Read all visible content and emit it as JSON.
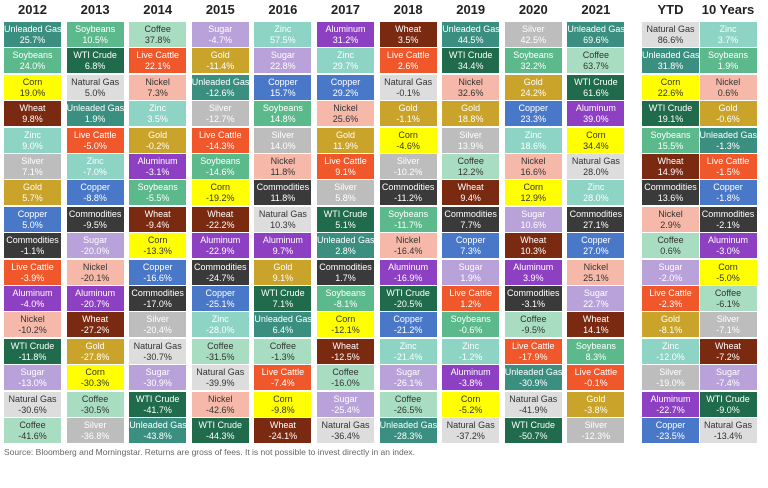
{
  "table": {
    "palette": {
      "Unleaded Gas": {
        "fill": "#3b8f80",
        "text": "#ffffff"
      },
      "Soybeans": {
        "fill": "#5cb98c",
        "text": "#ffffff"
      },
      "Corn": {
        "fill": "#ffff00",
        "text": "#333333"
      },
      "Wheat": {
        "fill": "#7b2a12",
        "text": "#ffffff"
      },
      "Zinc": {
        "fill": "#8dd4c4",
        "text": "#ffffff"
      },
      "Silver": {
        "fill": "#bdbdbd",
        "text": "#ffffff"
      },
      "Gold": {
        "fill": "#c9a32a",
        "text": "#ffffff"
      },
      "Copper": {
        "fill": "#4a78c9",
        "text": "#ffffff"
      },
      "Commodities": {
        "fill": "#3a3a3a",
        "text": "#ffffff"
      },
      "Live Cattle": {
        "fill": "#f0572b",
        "text": "#ffffff"
      },
      "Aluminum": {
        "fill": "#8d40c1",
        "text": "#ffffff"
      },
      "Nickel": {
        "fill": "#f6b9a9",
        "text": "#333333"
      },
      "WTI Crude": {
        "fill": "#1f6b4b",
        "text": "#ffffff"
      },
      "Sugar": {
        "fill": "#b9a2d9",
        "text": "#ffffff"
      },
      "Natural Gas": {
        "fill": "#dddddd",
        "text": "#333333"
      },
      "Coffee": {
        "fill": "#a9ddc1",
        "text": "#333333"
      }
    },
    "columns": [
      {
        "header": "2012",
        "cells": [
          [
            "Unleaded Gas",
            "25.7%"
          ],
          [
            "Soybeans",
            "24.0%"
          ],
          [
            "Corn",
            "19.0%"
          ],
          [
            "Wheat",
            "9.8%"
          ],
          [
            "Zinc",
            "9.0%"
          ],
          [
            "Silver",
            "7.1%"
          ],
          [
            "Gold",
            "5.7%"
          ],
          [
            "Copper",
            "5.0%"
          ],
          [
            "Commodities",
            "-1.1%"
          ],
          [
            "Live Cattle",
            "-3.9%"
          ],
          [
            "Aluminum",
            "-4.0%"
          ],
          [
            "Nickel",
            "-10.2%"
          ],
          [
            "WTI Crude",
            "-11.8%"
          ],
          [
            "Sugar",
            "-13.0%"
          ],
          [
            "Natural Gas",
            "-30.6%"
          ],
          [
            "Coffee",
            "-41.6%"
          ]
        ]
      },
      {
        "header": "2013",
        "cells": [
          [
            "Soybeans",
            "10.5%"
          ],
          [
            "WTI Crude",
            "6.8%"
          ],
          [
            "Natural Gas",
            "5.0%"
          ],
          [
            "Unleaded Gas",
            "1.9%"
          ],
          [
            "Live Cattle",
            "-5.0%"
          ],
          [
            "Zinc",
            "-7.0%"
          ],
          [
            "Copper",
            "-8.8%"
          ],
          [
            "Commodities",
            "-9.5%"
          ],
          [
            "Sugar",
            "-20.0%"
          ],
          [
            "Nickel",
            "-20.1%"
          ],
          [
            "Aluminum",
            "-20.7%"
          ],
          [
            "Wheat",
            "-27.2%"
          ],
          [
            "Gold",
            "-27.8%"
          ],
          [
            "Corn",
            "-30.3%"
          ],
          [
            "Coffee",
            "-30.5%"
          ],
          [
            "Silver",
            "-36.8%"
          ]
        ]
      },
      {
        "header": "2014",
        "cells": [
          [
            "Coffee",
            "37.8%"
          ],
          [
            "Live Cattle",
            "22.1%"
          ],
          [
            "Nickel",
            "7.3%"
          ],
          [
            "Zinc",
            "3.5%"
          ],
          [
            "Gold",
            "-0.2%"
          ],
          [
            "Aluminum",
            "-3.1%"
          ],
          [
            "Soybeans",
            "-5.5%"
          ],
          [
            "Wheat",
            "-9.4%"
          ],
          [
            "Corn",
            "-13.3%"
          ],
          [
            "Copper",
            "-16.6%"
          ],
          [
            "Commodities",
            "-17.0%"
          ],
          [
            "Silver",
            "-20.4%"
          ],
          [
            "Natural Gas",
            "-30.7%"
          ],
          [
            "Sugar",
            "-30.9%"
          ],
          [
            "WTI Crude",
            "-41.7%"
          ],
          [
            "Unleaded Gas",
            "-43.8%"
          ]
        ]
      },
      {
        "header": "2015",
        "cells": [
          [
            "Sugar",
            "-4.7%"
          ],
          [
            "Gold",
            "-11.4%"
          ],
          [
            "Unleaded Gas",
            "-12.6%"
          ],
          [
            "Silver",
            "-12.7%"
          ],
          [
            "Live Cattle",
            "-14.3%"
          ],
          [
            "Soybeans",
            "-14.6%"
          ],
          [
            "Corn",
            "-19.2%"
          ],
          [
            "Wheat",
            "-22.2%"
          ],
          [
            "Aluminum",
            "-22.9%"
          ],
          [
            "Commodities",
            "-24.7%"
          ],
          [
            "Copper",
            "-25.1%"
          ],
          [
            "Zinc",
            "-28.0%"
          ],
          [
            "Coffee",
            "-31.5%"
          ],
          [
            "Natural Gas",
            "-39.9%"
          ],
          [
            "Nickel",
            "-42.6%"
          ],
          [
            "WTI Crude",
            "-44.3%"
          ]
        ]
      },
      {
        "header": "2016",
        "cells": [
          [
            "Zinc",
            "57.5%"
          ],
          [
            "Sugar",
            "22.8%"
          ],
          [
            "Copper",
            "15.7%"
          ],
          [
            "Soybeans",
            "14.8%"
          ],
          [
            "Silver",
            "14.0%"
          ],
          [
            "Nickel",
            "11.8%"
          ],
          [
            "Commodities",
            "11.8%"
          ],
          [
            "Natural Gas",
            "10.3%"
          ],
          [
            "Aluminum",
            "9.7%"
          ],
          [
            "Gold",
            "9.1%"
          ],
          [
            "WTI Crude",
            "7.1%"
          ],
          [
            "Unleaded Gas",
            "6.4%"
          ],
          [
            "Coffee",
            "-1.3%"
          ],
          [
            "Live Cattle",
            "-7.4%"
          ],
          [
            "Corn",
            "-9.8%"
          ],
          [
            "Wheat",
            "-24.1%"
          ]
        ]
      },
      {
        "header": "2017",
        "cells": [
          [
            "Aluminum",
            "31.2%"
          ],
          [
            "Zinc",
            "29.7%"
          ],
          [
            "Copper",
            "29.2%"
          ],
          [
            "Nickel",
            "25.6%"
          ],
          [
            "Gold",
            "11.9%"
          ],
          [
            "Live Cattle",
            "9.1%"
          ],
          [
            "Silver",
            "5.8%"
          ],
          [
            "WTI Crude",
            "5.1%"
          ],
          [
            "Unleaded Gas",
            "2.8%"
          ],
          [
            "Commodities",
            "1.7%"
          ],
          [
            "Soybeans",
            "-8.1%"
          ],
          [
            "Corn",
            "-12.1%"
          ],
          [
            "Wheat",
            "-12.5%"
          ],
          [
            "Coffee",
            "-16.0%"
          ],
          [
            "Sugar",
            "-25.4%"
          ],
          [
            "Natural Gas",
            "-36.4%"
          ]
        ]
      },
      {
        "header": "2018",
        "cells": [
          [
            "Wheat",
            "3.5%"
          ],
          [
            "Live Cattle",
            "2.6%"
          ],
          [
            "Natural Gas",
            "-0.1%"
          ],
          [
            "Gold",
            "-1.1%"
          ],
          [
            "Corn",
            "-4.6%"
          ],
          [
            "Silver",
            "-10.2%"
          ],
          [
            "Commodities",
            "-11.2%"
          ],
          [
            "Soybeans",
            "-11.7%"
          ],
          [
            "Nickel",
            "-16.4%"
          ],
          [
            "Aluminum",
            "-16.9%"
          ],
          [
            "WTI Crude",
            "-20.5%"
          ],
          [
            "Copper",
            "-21.2%"
          ],
          [
            "Zinc",
            "-21.4%"
          ],
          [
            "Sugar",
            "-26.1%"
          ],
          [
            "Coffee",
            "-26.5%"
          ],
          [
            "Unleaded Gas",
            "-28.3%"
          ]
        ]
      },
      {
        "header": "2019",
        "cells": [
          [
            "Unleaded Gas",
            "44.5%"
          ],
          [
            "WTI Crude",
            "34.4%"
          ],
          [
            "Nickel",
            "32.6%"
          ],
          [
            "Gold",
            "18.8%"
          ],
          [
            "Silver",
            "13.9%"
          ],
          [
            "Coffee",
            "12.2%"
          ],
          [
            "Wheat",
            "9.4%"
          ],
          [
            "Commodities",
            "7.7%"
          ],
          [
            "Copper",
            "7.3%"
          ],
          [
            "Sugar",
            "1.9%"
          ],
          [
            "Live Cattle",
            "1.2%"
          ],
          [
            "Soybeans",
            "-0.6%"
          ],
          [
            "Zinc",
            "-1.2%"
          ],
          [
            "Aluminum",
            "-3.8%"
          ],
          [
            "Corn",
            "-5.2%"
          ],
          [
            "Natural Gas",
            "-37.2%"
          ]
        ]
      },
      {
        "header": "2020",
        "cells": [
          [
            "Silver",
            "42.5%"
          ],
          [
            "Soybeans",
            "32.2%"
          ],
          [
            "Gold",
            "24.2%"
          ],
          [
            "Copper",
            "23.3%"
          ],
          [
            "Zinc",
            "18.6%"
          ],
          [
            "Nickel",
            "16.6%"
          ],
          [
            "Corn",
            "12.9%"
          ],
          [
            "Sugar",
            "10.6%"
          ],
          [
            "Wheat",
            "10.3%"
          ],
          [
            "Aluminum",
            "3.9%"
          ],
          [
            "Commodities",
            "-3.1%"
          ],
          [
            "Coffee",
            "-9.5%"
          ],
          [
            "Live Cattle",
            "-17.9%"
          ],
          [
            "Unleaded Gas",
            "-30.9%"
          ],
          [
            "Natural Gas",
            "-41.9%"
          ],
          [
            "WTI Crude",
            "-50.7%"
          ]
        ]
      },
      {
        "header": "2021",
        "cells": [
          [
            "Unleaded Gas",
            "69.6%"
          ],
          [
            "Coffee",
            "63.7%"
          ],
          [
            "WTI Crude",
            "61.6%"
          ],
          [
            "Aluminum",
            "39.0%"
          ],
          [
            "Corn",
            "34.4%"
          ],
          [
            "Natural Gas",
            "28.0%"
          ],
          [
            "Zinc",
            "28.0%"
          ],
          [
            "Commodities",
            "27.1%"
          ],
          [
            "Copper",
            "27.0%"
          ],
          [
            "Nickel",
            "25.1%"
          ],
          [
            "Sugar",
            "22.7%"
          ],
          [
            "Wheat",
            "14.1%"
          ],
          [
            "Soybeans",
            "8.3%"
          ],
          [
            "Live Cattle",
            "-0.1%"
          ],
          [
            "Gold",
            "-3.8%"
          ],
          [
            "Silver",
            "-12.3%"
          ]
        ]
      },
      {
        "header": "YTD",
        "cells": [
          [
            "Natural Gas",
            "86.6%"
          ],
          [
            "Unleaded Gas",
            "31.8%"
          ],
          [
            "Corn",
            "22.6%"
          ],
          [
            "WTI Crude",
            "19.1%"
          ],
          [
            "Soybeans",
            "15.5%"
          ],
          [
            "Wheat",
            "14.9%"
          ],
          [
            "Commodities",
            "13.6%"
          ],
          [
            "Nickel",
            "2.9%"
          ],
          [
            "Coffee",
            "0.6%"
          ],
          [
            "Sugar",
            "-2.0%"
          ],
          [
            "Live Cattle",
            "-2.3%"
          ],
          [
            "Gold",
            "-8.1%"
          ],
          [
            "Zinc",
            "-12.0%"
          ],
          [
            "Silver",
            "-19.0%"
          ],
          [
            "Aluminum",
            "-22.7%"
          ],
          [
            "Copper",
            "-23.5%"
          ]
        ]
      },
      {
        "header": "10 Years",
        "cells": [
          [
            "Zinc",
            "3.7%"
          ],
          [
            "Soybeans",
            "1.9%"
          ],
          [
            "Nickel",
            "0.6%"
          ],
          [
            "Gold",
            "-0.6%"
          ],
          [
            "Unleaded Gas",
            "-1.3%"
          ],
          [
            "Live Cattle",
            "-1.5%"
          ],
          [
            "Copper",
            "-1.8%"
          ],
          [
            "Commodities",
            "-2.1%"
          ],
          [
            "Aluminum",
            "-3.0%"
          ],
          [
            "Corn",
            "-5.0%"
          ],
          [
            "Coffee",
            "-6.1%"
          ],
          [
            "Silver",
            "-7.1%"
          ],
          [
            "Wheat",
            "-7.2%"
          ],
          [
            "Sugar",
            "-7.4%"
          ],
          [
            "WTI Crude",
            "-9.0%"
          ],
          [
            "Natural Gas",
            "-13.4%"
          ]
        ]
      }
    ],
    "footnote": "Source: Bloomberg and Morningstar. Returns are gross of fees. It is not possible to invest directly in an index."
  }
}
